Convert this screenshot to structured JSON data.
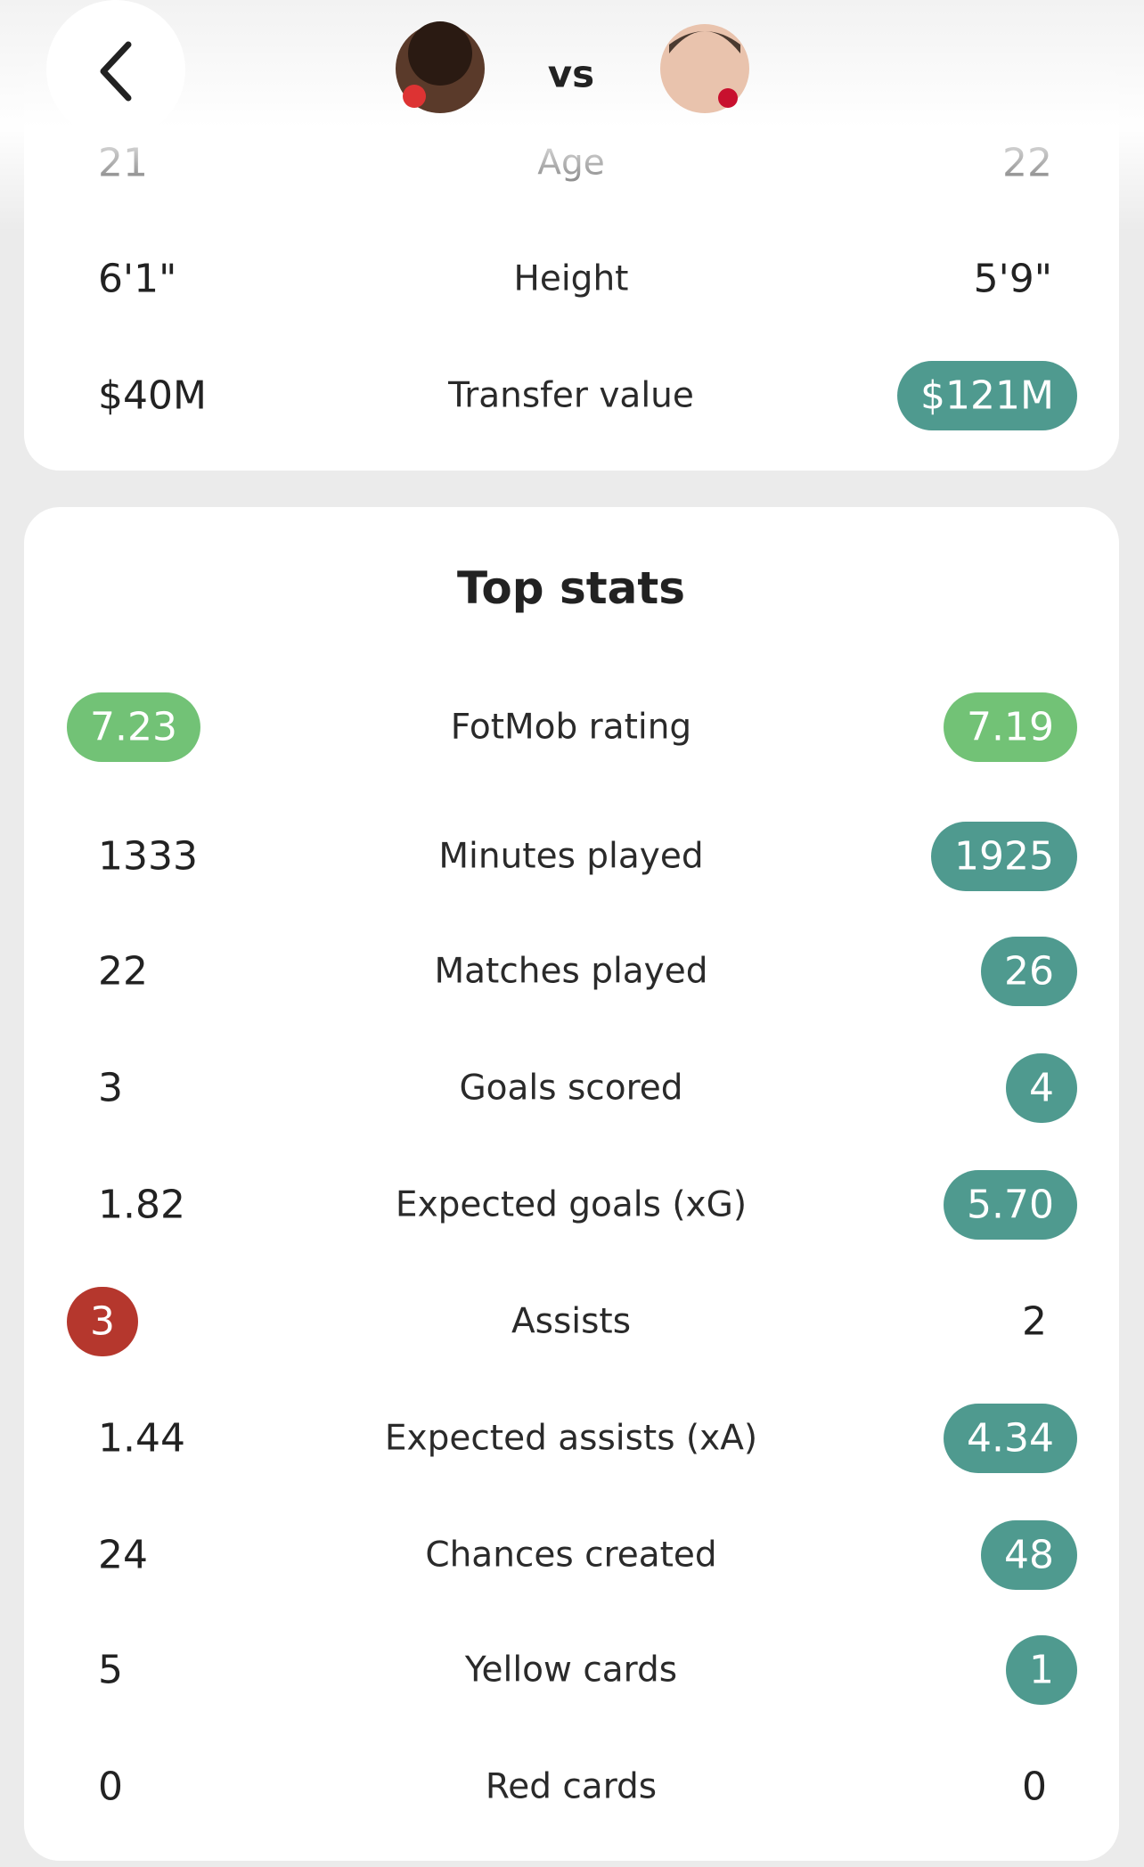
{
  "header": {
    "vs": "vs"
  },
  "profile": {
    "rows": [
      {
        "label": "Age",
        "left": "21",
        "right": "22"
      },
      {
        "label": "Height",
        "left": "6'1\"",
        "right": "5'9\""
      },
      {
        "label": "Transfer value",
        "left": "$40M",
        "right": "$121M",
        "highlight": "right",
        "pill_color": "#4f9a8f"
      }
    ]
  },
  "stats": {
    "title": "Top stats",
    "rows": [
      {
        "label": "FotMob rating",
        "left": "7.23",
        "right": "7.19",
        "highlight": "both",
        "pill_color": "#72c276"
      },
      {
        "label": "Minutes played",
        "left": "1333",
        "right": "1925",
        "highlight": "right",
        "pill_color": "#4f9a8f"
      },
      {
        "label": "Matches played",
        "left": "22",
        "right": "26",
        "highlight": "right",
        "pill_color": "#4f9a8f"
      },
      {
        "label": "Goals scored",
        "left": "3",
        "right": "4",
        "highlight": "right",
        "pill_color": "#4f9a8f"
      },
      {
        "label": "Expected goals (xG)",
        "left": "1.82",
        "right": "5.70",
        "highlight": "right",
        "pill_color": "#4f9a8f"
      },
      {
        "label": "Assists",
        "left": "3",
        "right": "2",
        "highlight": "left",
        "pill_color": "#b5372d"
      },
      {
        "label": "Expected assists (xA)",
        "left": "1.44",
        "right": "4.34",
        "highlight": "right",
        "pill_color": "#4f9a8f"
      },
      {
        "label": "Chances created",
        "left": "24",
        "right": "48",
        "highlight": "right",
        "pill_color": "#4f9a8f"
      },
      {
        "label": "Yellow cards",
        "left": "5",
        "right": "1",
        "highlight": "right",
        "pill_color": "#4f9a8f"
      },
      {
        "label": "Red cards",
        "left": "0",
        "right": "0"
      }
    ]
  }
}
